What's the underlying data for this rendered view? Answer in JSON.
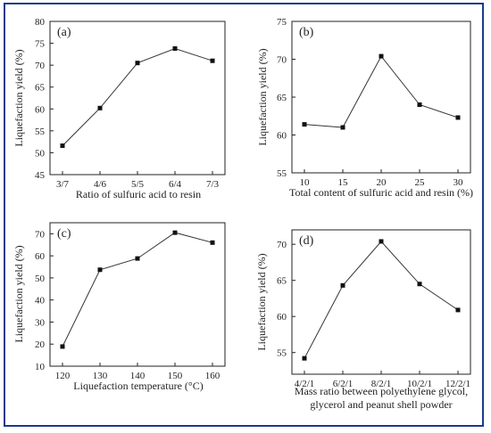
{
  "figure": {
    "frame_color": "#1b3a8c",
    "line_color": "#333333"
  },
  "chart_data": [
    {
      "type": "line",
      "panel_label": "(a)",
      "categories": [
        "3/7",
        "4/6",
        "5/5",
        "6/4",
        "7/3"
      ],
      "values": [
        51.6,
        60.2,
        70.5,
        73.8,
        71.0
      ],
      "ylim": [
        45,
        80
      ],
      "yticks": [
        45,
        50,
        55,
        60,
        65,
        70,
        75,
        80
      ],
      "xlabel": "Ratio of sulfuric acid to resin",
      "ylabel": "Liquefaction yield (%)",
      "grid": false
    },
    {
      "type": "line",
      "panel_label": "(b)",
      "categories": [
        "10",
        "15",
        "20",
        "25",
        "30"
      ],
      "values": [
        61.4,
        61.0,
        70.4,
        64.0,
        62.3
      ],
      "ylim": [
        55,
        75
      ],
      "yticks": [
        55,
        60,
        65,
        70,
        75
      ],
      "xlabel": "Total content of sulfuric acid and resin (%)",
      "ylabel": "Liquefaction yield (%)",
      "grid": false
    },
    {
      "type": "line",
      "panel_label": "(c)",
      "categories": [
        "120",
        "130",
        "140",
        "150",
        "160"
      ],
      "values": [
        18.9,
        53.7,
        58.8,
        70.5,
        66.0
      ],
      "ylim": [
        10,
        75
      ],
      "yticks": [
        10,
        20,
        30,
        40,
        50,
        60,
        70
      ],
      "xlabel": "Liquefaction  temperature (°C)",
      "ylabel": "Liquefaction yield (%)",
      "grid": false
    },
    {
      "type": "line",
      "panel_label": "(d)",
      "categories": [
        "4/2/1",
        "6/2/1",
        "8/2/1",
        "10/2/1",
        "12/2/1"
      ],
      "values": [
        54.2,
        64.3,
        70.4,
        64.5,
        60.9
      ],
      "ylim": [
        52,
        72
      ],
      "yticks": [
        55,
        60,
        65,
        70
      ],
      "xlabel": "Mass ratio between polyethylene glycol, glycerol and peanut shell powder",
      "xlabel_lines": [
        "Mass ratio between polyethylene glycol,",
        "glycerol and peanut shell powder"
      ],
      "ylabel": "Liquefaction yield (%)",
      "grid": false
    }
  ]
}
